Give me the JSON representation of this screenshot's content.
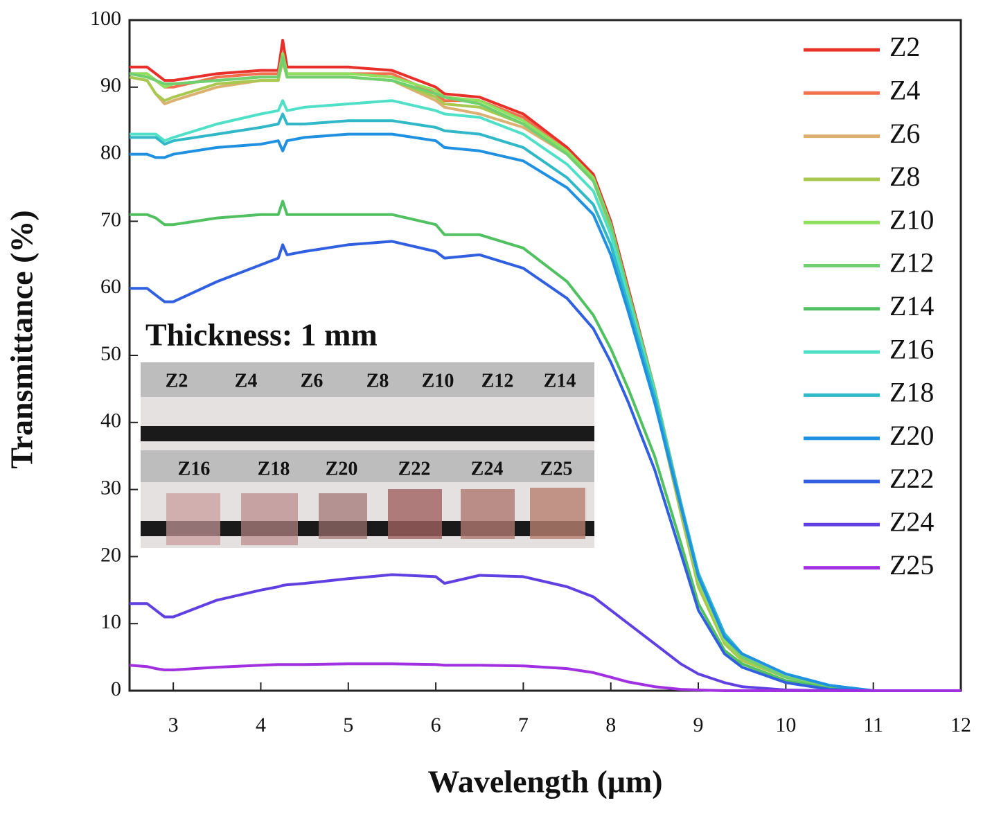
{
  "chart_data": {
    "type": "line",
    "xlabel": "Wavelength (μm)",
    "ylabel": "Transmittance (%)",
    "xlim": [
      2.5,
      12
    ],
    "ylim": [
      0,
      100
    ],
    "xticks": [
      3,
      4,
      5,
      6,
      7,
      8,
      9,
      10,
      11,
      12
    ],
    "yticks": [
      0,
      10,
      20,
      30,
      40,
      50,
      60,
      70,
      80,
      90,
      100
    ],
    "legend": "upper right",
    "x": [
      2.5,
      2.7,
      2.8,
      2.9,
      3.0,
      3.5,
      4.0,
      4.2,
      4.25,
      4.3,
      4.5,
      5,
      5.5,
      6,
      6.1,
      6.5,
      7,
      7.5,
      7.8,
      8,
      8.2,
      8.5,
      8.8,
      9,
      9.3,
      9.5,
      10,
      10.5,
      11,
      12
    ],
    "series": [
      {
        "name": "Z2",
        "color": "#e8302a",
        "values": [
          93,
          93,
          92,
          91,
          91,
          92,
          92.5,
          92.5,
          97,
          93,
          93,
          93,
          92.5,
          90,
          89,
          88.5,
          86,
          81,
          77,
          70,
          60,
          45,
          28,
          17,
          8,
          5,
          2,
          0.5,
          0,
          0
        ]
      },
      {
        "name": "Z4",
        "color": "#f07050",
        "values": [
          92,
          92,
          91,
          90,
          90,
          91.5,
          92,
          92,
          95,
          92,
          92,
          92,
          92,
          89,
          88,
          88,
          85.5,
          80.5,
          76.5,
          69.5,
          59,
          44,
          27,
          16,
          7.5,
          4.5,
          2,
          0.5,
          0,
          0
        ]
      },
      {
        "name": "Z6",
        "color": "#dcb070",
        "values": [
          91.5,
          91,
          89,
          87.5,
          88,
          90,
          91,
          91,
          94,
          91.5,
          91.5,
          91.5,
          91,
          88,
          87,
          86,
          84,
          80,
          76,
          69,
          58.5,
          43.5,
          26.5,
          15.5,
          7,
          4.5,
          2,
          0.5,
          0,
          0
        ]
      },
      {
        "name": "Z8",
        "color": "#a8c850",
        "values": [
          91.5,
          91,
          89,
          88,
          88.5,
          90.5,
          91,
          91,
          94,
          91.5,
          91.5,
          91.5,
          91,
          88.5,
          87.5,
          87,
          84.5,
          80,
          76,
          69,
          58.5,
          43.5,
          26.5,
          15.5,
          7,
          4.5,
          2,
          0.5,
          0,
          0
        ]
      },
      {
        "name": "Z10",
        "color": "#90e060",
        "values": [
          92,
          92,
          91,
          90,
          90.5,
          91,
          91.5,
          91.5,
          95,
          92,
          92,
          92,
          91.5,
          89.5,
          88.5,
          88,
          85,
          80.5,
          76.5,
          69.5,
          59,
          44.5,
          27.5,
          16.5,
          7.5,
          5,
          2,
          0.5,
          0,
          0
        ]
      },
      {
        "name": "Z12",
        "color": "#70d070",
        "values": [
          92,
          91.5,
          91,
          90.5,
          90.5,
          91,
          91.5,
          91.5,
          94.5,
          91.5,
          91.5,
          91.5,
          91,
          89,
          88.5,
          87.5,
          84.5,
          80,
          76,
          69.5,
          59.5,
          45,
          28,
          17,
          8,
          5,
          2,
          0.5,
          0,
          0
        ]
      },
      {
        "name": "Z14",
        "color": "#50c060",
        "values": [
          71,
          71,
          70.5,
          69.5,
          69.5,
          70.5,
          71,
          71,
          73,
          71,
          71,
          71,
          71,
          69.5,
          68,
          68,
          66,
          61,
          56,
          51,
          45,
          35,
          22,
          13,
          6,
          4,
          1.5,
          0.3,
          0,
          0
        ]
      },
      {
        "name": "Z16",
        "color": "#50e0c8",
        "values": [
          83,
          83,
          83,
          82,
          82.5,
          84.5,
          86,
          86.5,
          88,
          86.5,
          87,
          87.5,
          88,
          86.5,
          86,
          85.5,
          83,
          78.5,
          74.5,
          68,
          58.5,
          44.5,
          28,
          17.5,
          8.5,
          5.5,
          2.5,
          0.8,
          0,
          0
        ]
      },
      {
        "name": "Z18",
        "color": "#30b8c8",
        "values": [
          82.5,
          82.5,
          82.5,
          81.5,
          82,
          83,
          84,
          84.5,
          86,
          84.5,
          84.5,
          85,
          85,
          84,
          83.5,
          83,
          81,
          76.5,
          72.5,
          66.5,
          57.5,
          44,
          28,
          17.5,
          8.5,
          5.5,
          2.5,
          0.8,
          0,
          0
        ]
      },
      {
        "name": "Z20",
        "color": "#2090e0",
        "values": [
          80,
          80,
          79.5,
          79.5,
          80,
          81,
          81.5,
          82,
          80.5,
          82,
          82.5,
          83,
          83,
          82,
          81,
          80.5,
          79,
          75,
          71,
          65,
          56.5,
          43,
          27.5,
          17,
          8,
          5.5,
          2.5,
          0.8,
          0,
          0
        ]
      },
      {
        "name": "Z22",
        "color": "#3060e0",
        "values": [
          60,
          60,
          59,
          58,
          58,
          61,
          63.5,
          64.5,
          66.5,
          65,
          65.5,
          66.5,
          67,
          65.5,
          64.5,
          65,
          63,
          58.5,
          54,
          49,
          43,
          33,
          20.5,
          12,
          5.5,
          3.5,
          1.2,
          0.2,
          0,
          0
        ]
      },
      {
        "name": "Z24",
        "color": "#6040e0",
        "values": [
          13,
          13,
          12,
          11,
          11,
          13.5,
          15,
          15.5,
          15.7,
          15.8,
          16,
          16.7,
          17.3,
          17,
          16,
          17.2,
          17,
          15.5,
          14,
          12,
          10,
          7,
          4,
          2.5,
          1.2,
          0.6,
          0.1,
          0,
          0,
          0
        ]
      },
      {
        "name": "Z25",
        "color": "#a030e0",
        "values": [
          3.8,
          3.6,
          3.3,
          3.1,
          3.1,
          3.5,
          3.8,
          3.9,
          3.9,
          3.9,
          3.9,
          4,
          4,
          3.9,
          3.8,
          3.8,
          3.7,
          3.3,
          2.7,
          2,
          1.3,
          0.6,
          0.2,
          0.1,
          0,
          0,
          0,
          0,
          0,
          0
        ]
      }
    ],
    "inset": {
      "title": "Thickness: 1 mm",
      "row1": [
        "Z2",
        "Z4",
        "Z6",
        "Z8",
        "Z10",
        "Z12",
        "Z14"
      ],
      "row2": [
        "Z16",
        "Z18",
        "Z20",
        "Z22",
        "Z24",
        "Z25"
      ]
    }
  }
}
